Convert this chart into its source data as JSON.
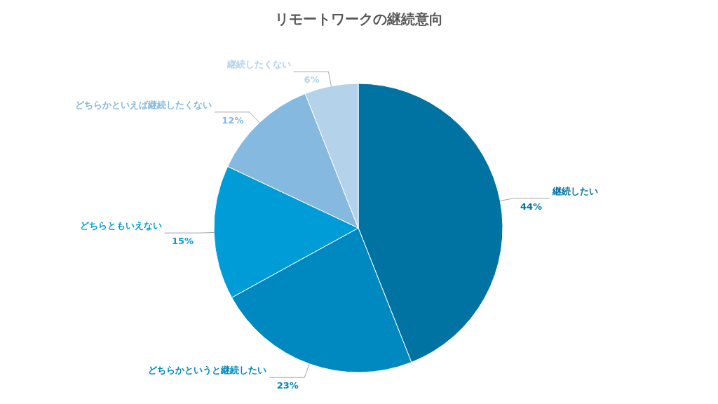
{
  "chart_data": {
    "type": "pie",
    "title": "リモートワークの継続意向",
    "categories": [
      "継続したい",
      "どちらかというと継続したい",
      "どちらともいえない",
      "どちらかといえば継続したくない",
      "継続したくない"
    ],
    "values": [
      44,
      23,
      15,
      12,
      6
    ],
    "value_labels": [
      "44%",
      "23%",
      "15%",
      "12%",
      "6%"
    ],
    "colors": [
      "#0073a3",
      "#0088c0",
      "#009cd8",
      "#86b9e0",
      "#b4d2ea"
    ]
  }
}
